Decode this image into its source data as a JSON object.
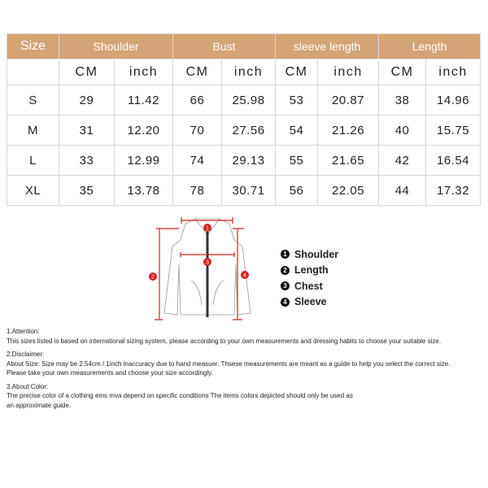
{
  "table": {
    "headers": [
      "Size",
      "Shoulder",
      "Bust",
      "sleeve length",
      "Length"
    ],
    "units": [
      "CM",
      "inch",
      "CM",
      "inch",
      "CM",
      "inch",
      "CM",
      "inch"
    ],
    "rows": [
      [
        "S",
        "29",
        "11.42",
        "66",
        "25.98",
        "53",
        "20.87",
        "38",
        "14.96"
      ],
      [
        "M",
        "31",
        "12.20",
        "70",
        "27.56",
        "54",
        "21.26",
        "40",
        "15.75"
      ],
      [
        "L",
        "33",
        "12.99",
        "74",
        "29.13",
        "55",
        "21.65",
        "42",
        "16.54"
      ],
      [
        "XL",
        "35",
        "13.78",
        "78",
        "30.71",
        "56",
        "22.05",
        "44",
        "17.32"
      ]
    ],
    "header_color": "#d3a474"
  },
  "diagram": {
    "markers": [
      "1",
      "2",
      "3",
      "4"
    ],
    "accent": "#d42020"
  },
  "legend": [
    {
      "num": "1",
      "label": "Shoulder"
    },
    {
      "num": "2",
      "label": "Length"
    },
    {
      "num": "3",
      "label": "Chest"
    },
    {
      "num": "4",
      "label": "Sleeve"
    }
  ],
  "notes": [
    {
      "title": "1.Attention:",
      "lines": [
        "This sizes listed is based on international sizing system, please according to your own measurements and dressing habits to choose your suitable size."
      ]
    },
    {
      "title": "2.Disclaimer:",
      "lines": [
        "About Size: Size may be 2.54cm / 1inch inaccuracy due to hand measuer. Thsese measurements are meant as a guide to help you select the correct size.",
        "Please take your own measurements and choose your size accordingly."
      ]
    },
    {
      "title": "3.About Color:",
      "lines": [
        "The precise color of a clothing ems mva depend on specific conditions The items colors depicted should only be used as",
        "an approximate guide."
      ]
    }
  ]
}
